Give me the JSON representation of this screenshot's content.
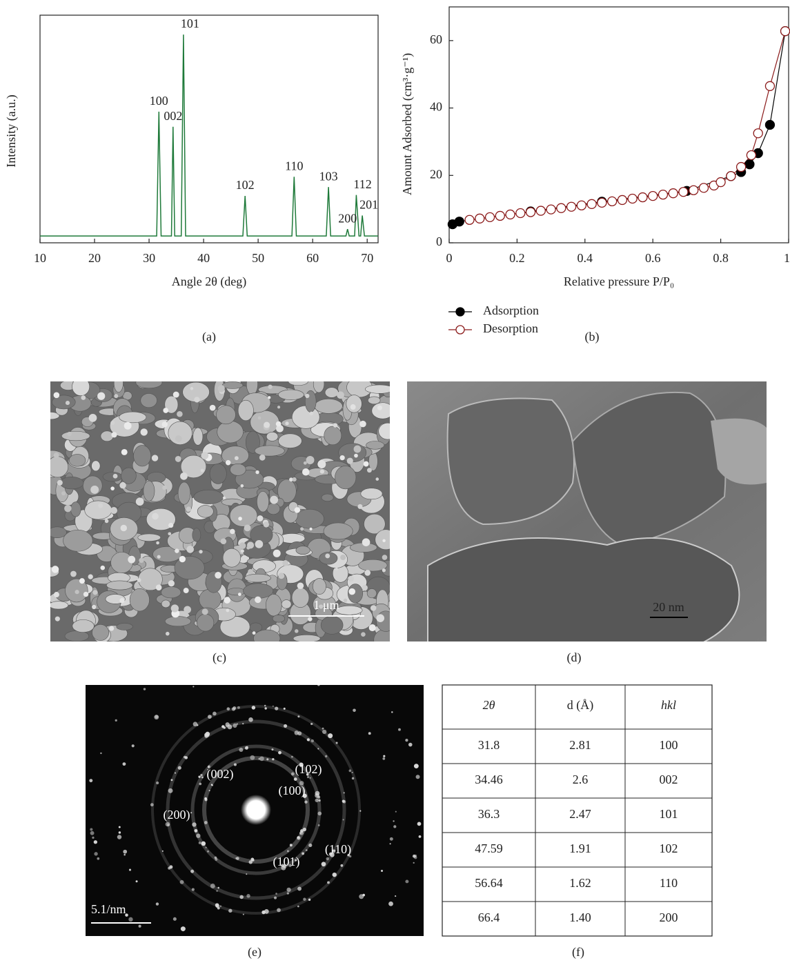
{
  "chart_data": [
    {
      "type": "line",
      "x_label": "Angle 2θ (deg)",
      "y_label": "Intensity (a.u.)",
      "caption": "(a)",
      "x": [
        10,
        31.4,
        31.8,
        32.2,
        34.1,
        34.4,
        34.7,
        35.9,
        36.3,
        36.7,
        47.2,
        47.6,
        48.0,
        56.2,
        56.6,
        57.0,
        62.5,
        62.9,
        63.3,
        66.1,
        66.4,
        66.7,
        67.7,
        68.0,
        68.5,
        68.8,
        69.1,
        69.5,
        72
      ],
      "series": [
        {
          "color": "#1f7a3a",
          "values": [
            3,
            3,
            57.6,
            3,
            3,
            51,
            3,
            3,
            91.5,
            3,
            3,
            20.6,
            3,
            3,
            29,
            3,
            3,
            24.5,
            3,
            3,
            6,
            3,
            3,
            21,
            3,
            3,
            12,
            3,
            3
          ],
          "point_labels": [
            null,
            null,
            "100",
            null,
            null,
            "002",
            null,
            null,
            "101",
            null,
            null,
            "102",
            null,
            null,
            "110",
            null,
            null,
            "103",
            null,
            null,
            "200",
            null,
            null,
            "112",
            null,
            null,
            "201",
            null,
            null
          ]
        }
      ],
      "xlim": [
        10,
        72
      ],
      "ylim": [
        0,
        100
      ],
      "xticks": [
        10,
        20,
        30,
        40,
        50,
        60,
        70
      ]
    },
    {
      "type": "scatter",
      "x_label": "Relative pressure P/P₀",
      "y_label": "Amount Adsorbed (cm³·g⁻¹)",
      "caption": "(b)",
      "series": [
        {
          "name": "Adsorption",
          "color": "#000000",
          "marker": "filled",
          "x": [
            0.01,
            0.03,
            0.24,
            0.45,
            0.7,
            0.83,
            0.86,
            0.885,
            0.91,
            0.945,
            0.99
          ],
          "values": [
            5.5,
            6.3,
            9.3,
            12.2,
            15.4,
            19.8,
            21,
            23.3,
            26.6,
            35,
            62.8
          ]
        },
        {
          "name": "Desorption",
          "color": "#8b1a1a",
          "marker": "open",
          "x": [
            0.06,
            0.09,
            0.12,
            0.15,
            0.18,
            0.21,
            0.24,
            0.27,
            0.3,
            0.33,
            0.36,
            0.39,
            0.42,
            0.45,
            0.48,
            0.51,
            0.54,
            0.57,
            0.6,
            0.63,
            0.66,
            0.69,
            0.72,
            0.75,
            0.78,
            0.8,
            0.83,
            0.86,
            0.89,
            0.91,
            0.945,
            0.99
          ],
          "values": [
            6.8,
            7.2,
            7.6,
            8.0,
            8.4,
            8.8,
            9.1,
            9.5,
            9.9,
            10.3,
            10.7,
            11.1,
            11.5,
            11.9,
            12.3,
            12.7,
            13.1,
            13.5,
            13.9,
            14.3,
            14.7,
            15.1,
            15.6,
            16.3,
            17.0,
            18.0,
            19.8,
            22.5,
            26.0,
            32.5,
            46.5,
            62.8
          ]
        }
      ],
      "xlim": [
        0,
        1
      ],
      "ylim": [
        0,
        70
      ],
      "xticks": [
        0,
        0.2,
        0.4,
        0.6,
        0.8,
        1
      ],
      "yticks": [
        0,
        20,
        40,
        60
      ],
      "legend": "below"
    }
  ],
  "sem": {
    "scale_bar": "1 μm",
    "caption": "(c)"
  },
  "tem": {
    "scale_bar": "20 nm",
    "caption": "(d)"
  },
  "saed": {
    "scale_bar": "5.1/nm",
    "caption": "(e)",
    "ring_labels": [
      "(002)",
      "(102)",
      "(100)",
      "(200)",
      "(101)",
      "(110)"
    ]
  },
  "table": {
    "caption": "(f)",
    "header": [
      "2θ",
      "d (Å)",
      "hkl"
    ],
    "rows": [
      [
        "31.8",
        "2.81",
        "100"
      ],
      [
        "34.46",
        "2.6",
        "002"
      ],
      [
        "36.3",
        "2.47",
        "101"
      ],
      [
        "47.59",
        "1.91",
        "102"
      ],
      [
        "56.64",
        "1.62",
        "110"
      ],
      [
        "66.4",
        "1.40",
        "200"
      ]
    ]
  }
}
